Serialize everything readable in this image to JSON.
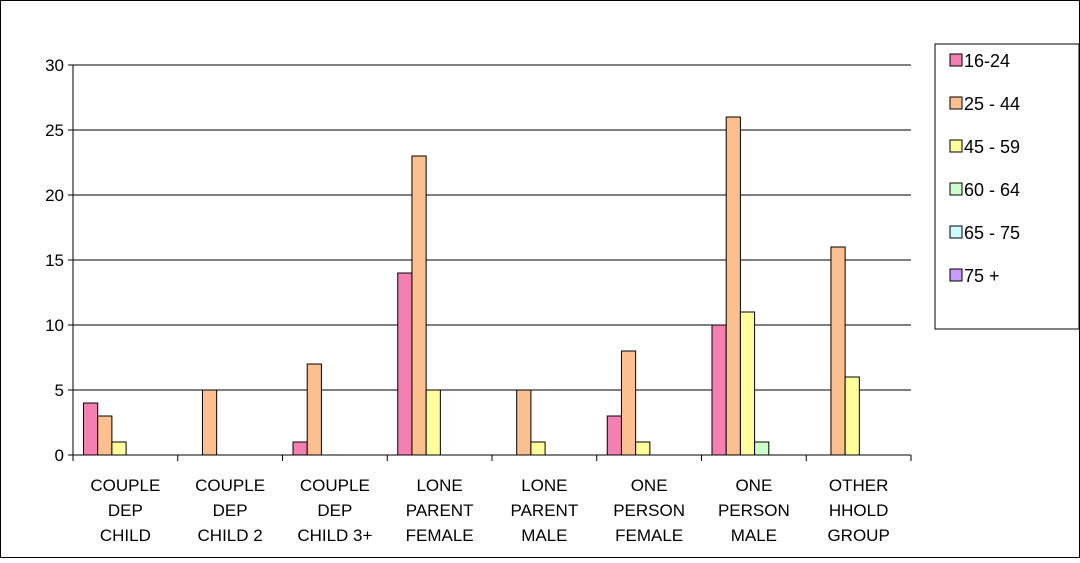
{
  "chart_data": {
    "type": "bar",
    "categories": [
      [
        "COUPLE",
        "DEP",
        "CHILD"
      ],
      [
        "COUPLE",
        "DEP",
        "CHILD 2"
      ],
      [
        "COUPLE",
        "DEP",
        "CHILD 3+"
      ],
      [
        "LONE",
        "PARENT",
        "FEMALE"
      ],
      [
        "LONE",
        "PARENT",
        "MALE"
      ],
      [
        "ONE",
        "PERSON",
        "FEMALE"
      ],
      [
        "ONE",
        "PERSON",
        "MALE"
      ],
      [
        "OTHER",
        "HHOLD",
        "GROUP"
      ]
    ],
    "series": [
      {
        "name": "16-24",
        "color": "#f47fb3",
        "values": [
          4,
          0,
          1,
          14,
          0,
          3,
          10,
          0
        ]
      },
      {
        "name": "25 - 44",
        "color": "#fbc08e",
        "values": [
          3,
          5,
          7,
          23,
          5,
          8,
          26,
          16
        ]
      },
      {
        "name": "45 - 59",
        "color": "#ffff99",
        "values": [
          1,
          0,
          0,
          5,
          1,
          1,
          11,
          6
        ]
      },
      {
        "name": "60 - 64",
        "color": "#ccffcc",
        "values": [
          0,
          0,
          0,
          0,
          0,
          0,
          1,
          0
        ]
      },
      {
        "name": "65 - 75",
        "color": "#ccffff",
        "values": [
          0,
          0,
          0,
          0,
          0,
          0,
          0,
          0
        ]
      },
      {
        "name": "75 +",
        "color": "#cc99ff",
        "values": [
          0,
          0,
          0,
          0,
          0,
          0,
          0,
          0
        ]
      }
    ],
    "ylim": [
      0,
      30
    ],
    "yticks": [
      0,
      5,
      10,
      15,
      20,
      25,
      30
    ],
    "grid": true,
    "legend_position": "right"
  }
}
